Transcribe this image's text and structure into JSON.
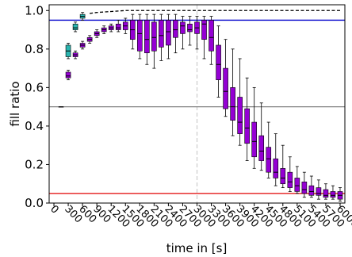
{
  "chart_data": {
    "type": "box",
    "xlabel": "time in [s]",
    "ylabel": "fill ratio",
    "xlim": [
      -100,
      6100
    ],
    "ylim": [
      0,
      1.03
    ],
    "xticks": [
      0,
      300,
      600,
      900,
      1200,
      1500,
      1800,
      2100,
      2400,
      2700,
      3000,
      3300,
      3600,
      3900,
      4200,
      4500,
      4800,
      5100,
      5400,
      5700,
      6000
    ],
    "yticks": [
      {
        "value": 0,
        "label": "0.0"
      },
      {
        "value": 0.2,
        "label": "0.2"
      },
      {
        "value": 0.4,
        "label": "0.4"
      },
      {
        "value": 0.6,
        "label": "0.6"
      },
      {
        "value": 0.8,
        "label": "0.8"
      },
      {
        "value": 1.0,
        "label": "1.0"
      }
    ],
    "hlines": [
      {
        "value": 0.95,
        "color": "#0000cc"
      },
      {
        "value": 0.5,
        "color": "#808080"
      },
      {
        "value": 0.05,
        "color": "#e00000"
      }
    ],
    "vlines": [
      {
        "value": 3000,
        "color": "#cccccc",
        "dashed": true
      }
    ],
    "series": [
      {
        "color": "#9400d3",
        "x": [
          150,
          300,
          450,
          600,
          750,
          900,
          1050,
          1200,
          1350,
          1500,
          1650,
          1800,
          1950,
          2100,
          2250,
          2400,
          2550,
          2700,
          2850,
          3000,
          3150,
          3300,
          3450,
          3600,
          3750,
          3900,
          4050,
          4200,
          4350,
          4500,
          4650,
          4800,
          4950,
          5100,
          5250,
          5400,
          5550,
          5700,
          5850,
          6000
        ],
        "stats": [
          [
            0.5,
            0.5,
            0.5,
            0.5,
            0.5
          ],
          [
            0.64,
            0.65,
            0.66,
            0.68,
            0.69
          ],
          [
            0.75,
            0.76,
            0.77,
            0.78,
            0.79
          ],
          [
            0.8,
            0.81,
            0.82,
            0.83,
            0.84
          ],
          [
            0.83,
            0.84,
            0.85,
            0.86,
            0.87
          ],
          [
            0.86,
            0.87,
            0.88,
            0.89,
            0.9
          ],
          [
            0.88,
            0.89,
            0.9,
            0.91,
            0.92
          ],
          [
            0.89,
            0.9,
            0.91,
            0.92,
            0.93
          ],
          [
            0.89,
            0.9,
            0.91,
            0.93,
            0.95
          ],
          [
            0.88,
            0.9,
            0.92,
            0.94,
            0.96
          ],
          [
            0.8,
            0.85,
            0.9,
            0.95,
            0.98
          ],
          [
            0.75,
            0.79,
            0.88,
            0.95,
            0.98
          ],
          [
            0.72,
            0.78,
            0.85,
            0.95,
            0.98
          ],
          [
            0.7,
            0.79,
            0.86,
            0.94,
            0.98
          ],
          [
            0.74,
            0.81,
            0.87,
            0.95,
            0.98
          ],
          [
            0.75,
            0.82,
            0.89,
            0.95,
            0.98
          ],
          [
            0.78,
            0.86,
            0.9,
            0.95,
            0.98
          ],
          [
            0.8,
            0.88,
            0.92,
            0.94,
            0.97
          ],
          [
            0.82,
            0.89,
            0.9,
            0.93,
            0.97
          ],
          [
            0.8,
            0.88,
            0.91,
            0.94,
            0.97
          ],
          [
            0.75,
            0.85,
            0.93,
            0.95,
            0.97
          ],
          [
            0.72,
            0.79,
            0.86,
            0.95,
            0.97
          ],
          [
            0.55,
            0.64,
            0.72,
            0.82,
            0.92
          ],
          [
            0.45,
            0.49,
            0.58,
            0.7,
            0.85
          ],
          [
            0.35,
            0.43,
            0.5,
            0.6,
            0.8
          ],
          [
            0.3,
            0.36,
            0.42,
            0.55,
            0.75
          ],
          [
            0.22,
            0.31,
            0.39,
            0.49,
            0.65
          ],
          [
            0.18,
            0.24,
            0.32,
            0.42,
            0.6
          ],
          [
            0.17,
            0.22,
            0.27,
            0.35,
            0.52
          ],
          [
            0.13,
            0.16,
            0.23,
            0.29,
            0.42
          ],
          [
            0.09,
            0.13,
            0.16,
            0.23,
            0.36
          ],
          [
            0.08,
            0.1,
            0.13,
            0.18,
            0.3
          ],
          [
            0.06,
            0.08,
            0.11,
            0.16,
            0.24
          ],
          [
            0.05,
            0.06,
            0.09,
            0.13,
            0.19
          ],
          [
            0.03,
            0.05,
            0.07,
            0.11,
            0.16
          ],
          [
            0.03,
            0.04,
            0.06,
            0.09,
            0.14
          ],
          [
            0.02,
            0.04,
            0.05,
            0.08,
            0.12
          ],
          [
            0.02,
            0.03,
            0.04,
            0.07,
            0.1
          ],
          [
            0.02,
            0.03,
            0.04,
            0.06,
            0.09
          ],
          [
            0.01,
            0.02,
            0.04,
            0.06,
            0.08
          ]
        ]
      },
      {
        "color": "#2ab5b0",
        "x": [
          300,
          450,
          600
        ],
        "stats": [
          [
            0.75,
            0.76,
            0.79,
            0.82,
            0.83
          ],
          [
            0.89,
            0.9,
            0.91,
            0.93,
            0.94
          ],
          [
            0.95,
            0.96,
            0.97,
            0.98,
            0.99
          ]
        ]
      }
    ],
    "lines": [
      {
        "color": "#000000",
        "dashed": true,
        "x": [
          750,
          900,
          1200,
          1500,
          6000
        ],
        "values": [
          0.985,
          0.99,
          0.995,
          1.0,
          1.0
        ]
      }
    ]
  }
}
